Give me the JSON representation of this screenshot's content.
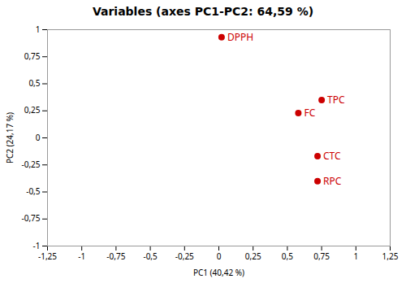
{
  "chart_data": {
    "type": "scatter",
    "title": "Variables (axes PC1-PC2: 64,59 %)",
    "x_label": "PC1 (40,42 %)",
    "y_label": "PC2 (24,17 %)",
    "labels": [
      "DPPH",
      "TPC",
      "FC",
      "CTC",
      "RPC"
    ],
    "x": [
      0.02,
      0.75,
      0.58,
      0.72,
      0.72
    ],
    "y": [
      0.93,
      0.35,
      0.23,
      -0.17,
      -0.4
    ],
    "color": "#cc0000",
    "xlim": [
      -1.25,
      1.25
    ],
    "ylim": [
      -1.0,
      1.0
    ],
    "xticks": [
      {
        "value": -1.25,
        "label": "-1,25"
      },
      -1,
      {
        "value": -0.75,
        "label": "-0,75"
      },
      {
        "value": -0.5,
        "label": "-0,5"
      },
      {
        "value": -0.25,
        "label": "-0,25"
      },
      0,
      {
        "value": 0.25,
        "label": "0,25"
      },
      {
        "value": 0.5,
        "label": "0,5"
      },
      {
        "value": 0.75,
        "label": "0,75"
      },
      1,
      {
        "value": 1.25,
        "label": "1,25"
      }
    ],
    "yticks": [
      -1,
      {
        "value": -0.75,
        "label": "-0,75"
      },
      {
        "value": -0.5,
        "label": "-0,5"
      },
      {
        "value": -0.25,
        "label": "-0,25"
      },
      0,
      {
        "value": 0.25,
        "label": "0,25"
      },
      {
        "value": 0.5,
        "label": "0,5"
      },
      {
        "value": 0.75,
        "label": "0,75"
      },
      1
    ],
    "grid": false
  }
}
